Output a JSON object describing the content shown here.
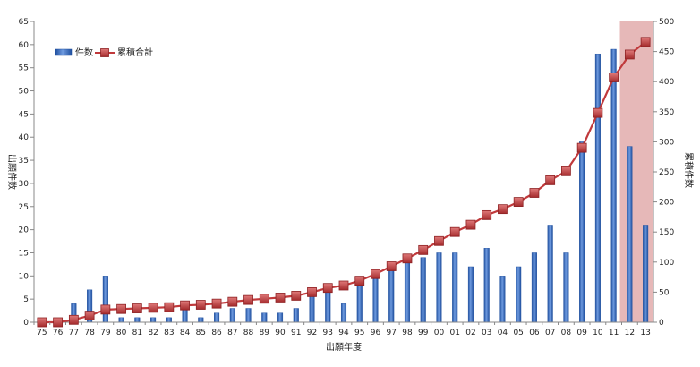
{
  "chart_data": {
    "type": "bar",
    "categories": [
      "75",
      "76",
      "77",
      "78",
      "79",
      "80",
      "81",
      "82",
      "83",
      "84",
      "85",
      "86",
      "87",
      "88",
      "89",
      "90",
      "91",
      "92",
      "93",
      "94",
      "95",
      "96",
      "97",
      "98",
      "99",
      "00",
      "01",
      "02",
      "03",
      "04",
      "05",
      "06",
      "07",
      "08",
      "09",
      "10",
      "11",
      "12",
      "13"
    ],
    "series": [
      {
        "name": "件数",
        "type": "bar",
        "axis": "left",
        "color": "#3d6fc4",
        "values": [
          0,
          0,
          4,
          7,
          10,
          1,
          1,
          1,
          1,
          3,
          1,
          2,
          3,
          3,
          2,
          2,
          3,
          6,
          7,
          4,
          8,
          11,
          13,
          13,
          14,
          15,
          15,
          12,
          16,
          10,
          12,
          15,
          21,
          15,
          39,
          58,
          59,
          38,
          21
        ]
      },
      {
        "name": "累積合計",
        "type": "line",
        "axis": "right",
        "color": "#c0393b",
        "values": [
          0,
          0,
          4,
          11,
          21,
          22,
          23,
          24,
          25,
          28,
          29,
          31,
          34,
          37,
          39,
          41,
          44,
          50,
          57,
          61,
          69,
          80,
          93,
          106,
          120,
          135,
          150,
          162,
          178,
          188,
          200,
          215,
          236,
          251,
          290,
          348,
          407,
          445,
          466
        ]
      }
    ],
    "ylabel_left": "出願件数",
    "ylabel_right": "累積件数",
    "xlabel": "出願年度",
    "ylim_left": [
      0,
      65
    ],
    "ylim_right": [
      0,
      500
    ],
    "yticks_left": [
      0,
      5,
      10,
      15,
      20,
      25,
      30,
      35,
      40,
      45,
      50,
      55,
      60,
      65
    ],
    "yticks_right": [
      0,
      50,
      100,
      150,
      200,
      250,
      300,
      350,
      400,
      450,
      500
    ],
    "highlight_categories": [
      "12",
      "13"
    ],
    "highlight_color": "#e2acac",
    "legend_position": "top-left",
    "grid": false
  }
}
